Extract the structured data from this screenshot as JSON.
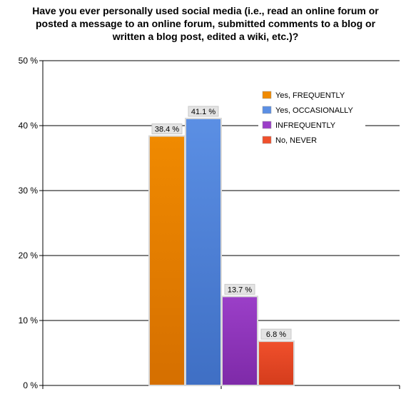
{
  "chart_data": {
    "type": "bar",
    "title_lines": [
      "Have you ever personally used social media (i.e., read an online forum or",
      "posted a message to an online forum, submitted comments to a blog or",
      "written a blog post, edited a wiki, etc.)?"
    ],
    "xlabel": "",
    "ylabel": "",
    "ylim": [
      0,
      50
    ],
    "yticks": [
      0,
      10,
      20,
      30,
      40,
      50
    ],
    "ytick_labels": [
      "0 %",
      "10 %",
      "20 %",
      "30 %",
      "40 %",
      "50 %"
    ],
    "grid": true,
    "legend_position": "top-right",
    "series": [
      {
        "name": "Yes, FREQUENTLY",
        "value": 38.4,
        "label": "38.4 %",
        "color": "#f08a00",
        "color_dark": "#d56f00"
      },
      {
        "name": "Yes, OCCASIONALLY",
        "value": 41.1,
        "label": "41.1 %",
        "color": "#5b8fe4",
        "color_dark": "#3f6fc4"
      },
      {
        "name": "INFREQUENTLY",
        "value": 13.7,
        "label": "13.7 %",
        "color": "#9b3fc8",
        "color_dark": "#7e2aa8"
      },
      {
        "name": "No, NEVER",
        "value": 6.8,
        "label": "6.8 %",
        "color": "#f0502c",
        "color_dark": "#d43c1c"
      }
    ]
  }
}
